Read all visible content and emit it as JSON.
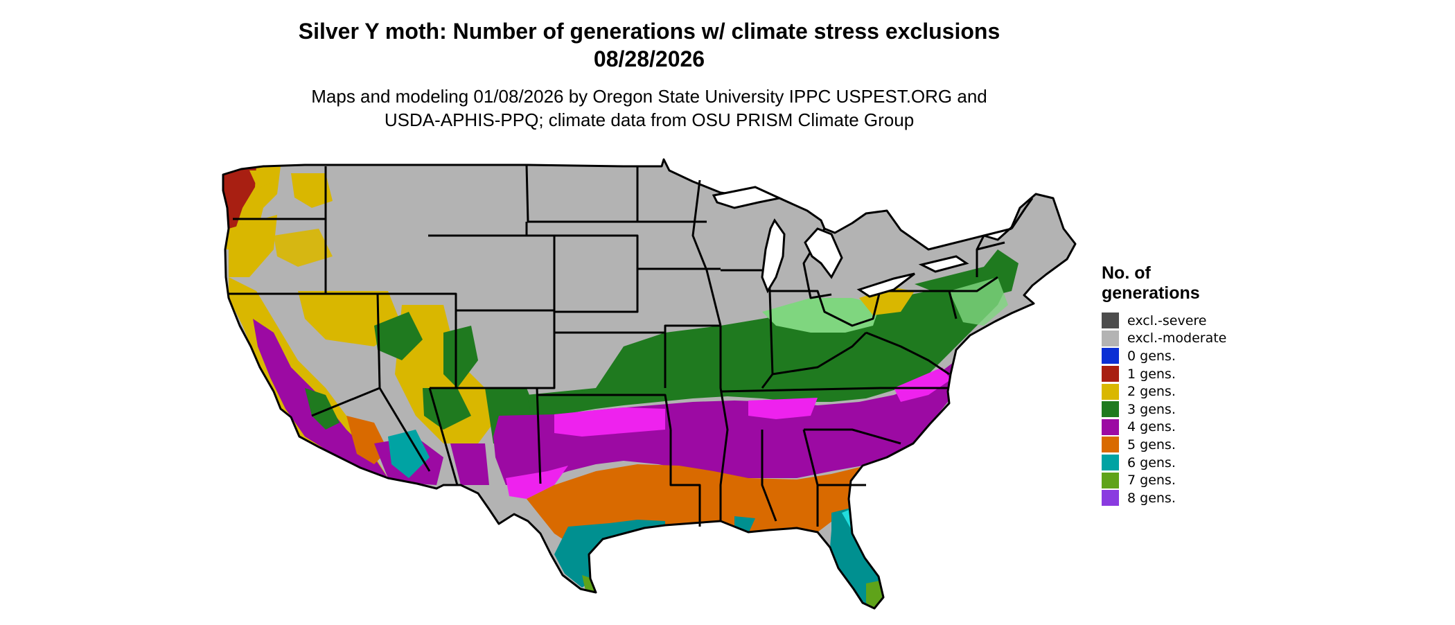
{
  "title": {
    "line1": "Silver Y moth: Number of generations w/ climate stress exclusions",
    "line2": "08/28/2026"
  },
  "subtitle": {
    "line1": "Maps and modeling 01/08/2026 by Oregon State University IPPC USPEST.ORG and",
    "line2": "USDA-APHIS-PPQ; climate data from OSU PRISM Climate Group"
  },
  "legend": {
    "title": "No. of generations",
    "items": [
      {
        "label": "excl.-severe",
        "color": "#4d4d4d"
      },
      {
        "label": "excl.-moderate",
        "color": "#b3b3b3"
      },
      {
        "label": "0 gens.",
        "color": "#0a2fd4"
      },
      {
        "label": "1 gens.",
        "color": "#a81f12"
      },
      {
        "label": "2 gens.",
        "color": "#d9b700"
      },
      {
        "label": "3 gens.",
        "color": "#1f7a1f"
      },
      {
        "label": "4 gens.",
        "color": "#9c0aa3"
      },
      {
        "label": "5 gens.",
        "color": "#d96a00"
      },
      {
        "label": "6 gens.",
        "color": "#00a3a3"
      },
      {
        "label": "7 gens.",
        "color": "#5fa31a"
      },
      {
        "label": "8 gens.",
        "color": "#8a3be0"
      }
    ]
  },
  "map": {
    "region": "Contiguous United States",
    "fill_colors": {
      "excluded": "#b3b3b3",
      "one_gen": "#a81f12",
      "two_gens": "#d9b700",
      "three_gens": "#1f7a1f",
      "three_gens_light": "#7fd67f",
      "four_gens": "#9c0aa3",
      "four_gens_magenta": "#ee22ee",
      "five_gens": "#d96a00",
      "six_gens": "#009090",
      "six_gens_cyan": "#22dddd",
      "seven_gens": "#5fa31a",
      "lakes": "#ffffff"
    }
  }
}
